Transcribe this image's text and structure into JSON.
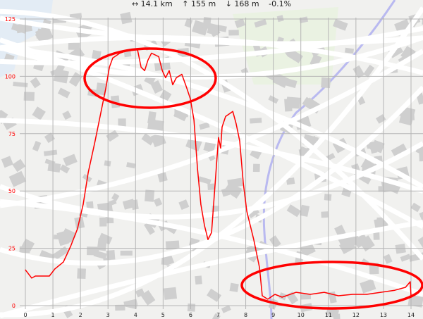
{
  "stats": {
    "distance": "↔ 14.1 km",
    "ascent": "↑ 155 m",
    "descent": "↓ 168 m",
    "grade": "-0.1%"
  },
  "chart_data": {
    "type": "line",
    "title": "",
    "xlabel": "",
    "ylabel": "",
    "xlim": [
      0,
      14
    ],
    "ylim": [
      0,
      125
    ],
    "x_ticks": [
      "0",
      "1",
      "2",
      "3",
      "4",
      "5",
      "6",
      "7",
      "8",
      "9",
      "10",
      "11",
      "12",
      "13",
      "14"
    ],
    "y_ticks": [
      "0",
      "25",
      "50",
      "75",
      "100",
      "125"
    ],
    "grid": true,
    "line_color": "#ff0000",
    "annotations": [
      {
        "shape": "ellipse",
        "color": "#ff0000",
        "around": "peak around 3-6.5 km"
      },
      {
        "shape": "ellipse",
        "color": "#ff0000",
        "around": "flat section 8.5-14 km"
      }
    ],
    "series": [
      {
        "x": [
          0,
          0.23,
          0.36,
          0.87,
          1.07,
          1.38,
          1.64,
          1.89,
          2.1,
          2.28,
          2.53,
          2.79,
          2.92,
          3.05,
          3.17,
          3.43,
          3.81,
          4.07,
          4.2,
          4.33,
          4.45,
          4.58,
          4.84,
          4.97,
          5.09,
          5.22,
          5.35,
          5.48,
          5.68,
          5.86,
          5.99,
          6.12,
          6.25,
          6.37,
          6.5,
          6.63,
          6.76,
          6.89,
          7.01,
          7.09,
          7.14,
          7.27,
          7.53,
          7.65,
          7.78,
          7.91,
          8.04,
          8.29,
          8.5,
          8.6,
          8.8,
          9.06,
          9.32,
          9.83,
          10.34,
          10.85,
          11.36,
          11.88,
          12.39,
          12.9,
          13.41,
          13.8,
          13.97,
          14.0
        ],
        "y": [
          15.6,
          12.0,
          12.9,
          12.9,
          16.0,
          19.0,
          25.8,
          33.4,
          44.2,
          58.0,
          71.8,
          87.1,
          94.8,
          104.0,
          108.0,
          110.1,
          111.7,
          111.7,
          104.0,
          102.5,
          107.1,
          110.1,
          108.6,
          102.5,
          99.4,
          102.5,
          96.3,
          99.4,
          100.9,
          94.8,
          90.2,
          81.0,
          59.5,
          44.2,
          35.0,
          28.8,
          31.9,
          53.4,
          73.3,
          68.7,
          77.9,
          82.5,
          84.7,
          79.4,
          71.8,
          53.4,
          41.1,
          28.8,
          16.6,
          4.3,
          2.8,
          4.9,
          3.7,
          5.8,
          4.9,
          5.8,
          4.3,
          4.9,
          4.9,
          5.8,
          6.7,
          8.0,
          10.4,
          4.3
        ]
      }
    ]
  }
}
